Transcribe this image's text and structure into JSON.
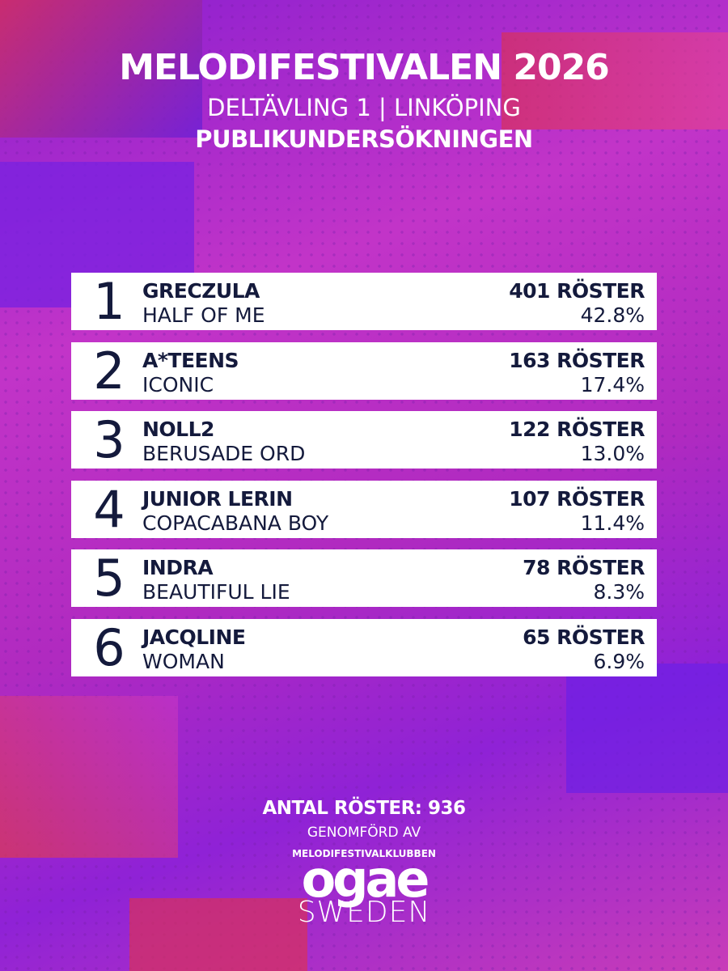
{
  "header": {
    "title": "MELODIFESTIVALEN 2026",
    "subtitle": "DELTÄVLING 1 | LINKÖPING",
    "heading": "PUBLIKUNDERSÖKNINGEN"
  },
  "table": {
    "rows": [
      {
        "rank": "1",
        "artist": "GRECZULA",
        "song": "HALF OF ME",
        "votes": "401 RÖSTER",
        "percent": "42.8%"
      },
      {
        "rank": "2",
        "artist": "A*TEENS",
        "song": "ICONIC",
        "votes": "163 RÖSTER",
        "percent": "17.4%"
      },
      {
        "rank": "3",
        "artist": "NOLL2",
        "song": "BERUSADE ORD",
        "votes": "122 RÖSTER",
        "percent": "13.0%"
      },
      {
        "rank": "4",
        "artist": "JUNIOR LERIN",
        "song": "COPACABANA BOY",
        "votes": "107 RÖSTER",
        "percent": "11.4%"
      },
      {
        "rank": "5",
        "artist": "INDRA",
        "song": "BEAUTIFUL LIE",
        "votes": "78 RÖSTER",
        "percent": "8.3%"
      },
      {
        "rank": "6",
        "artist": "JACQLINE",
        "song": "WOMAN",
        "votes": "65 RÖSTER",
        "percent": "6.9%"
      }
    ]
  },
  "footer": {
    "total": "ANTAL RÖSTER: 936",
    "conducted_by": "GENOMFÖRD AV",
    "club": "MELODIFESTIVALKLUBBEN",
    "logo": "ogae",
    "country": "SWEDEN"
  }
}
